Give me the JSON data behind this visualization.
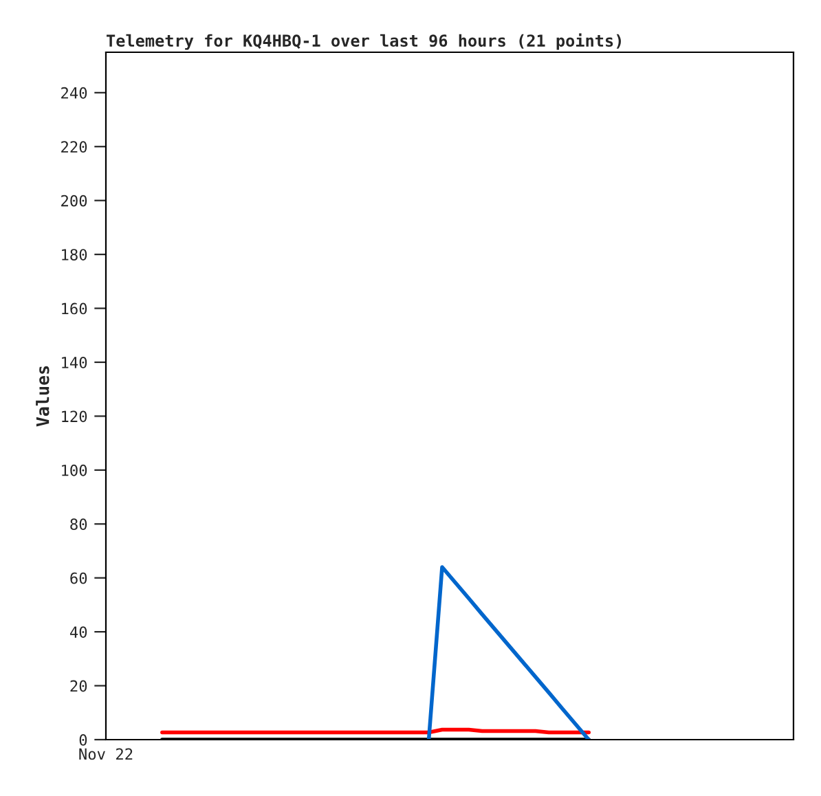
{
  "chart_data": {
    "type": "line",
    "title": "Telemetry for KQ4HBQ-1 over last 96 hours (21 points)",
    "ylabel": "Values",
    "annotations": [
      "Nov 22"
    ],
    "categories": [
      null,
      null,
      null,
      null,
      null,
      null,
      null,
      null,
      null,
      null,
      null,
      null,
      null,
      null,
      null,
      null,
      null,
      null,
      null,
      null,
      null,
      null,
      null,
      null,
      null,
      null,
      null,
      null,
      null,
      null,
      null,
      null,
      null
    ],
    "ylim": [
      0,
      255
    ],
    "yticks": [
      0,
      20,
      40,
      60,
      80,
      100,
      120,
      140,
      160,
      180,
      200,
      220,
      240
    ],
    "grid": false,
    "legend": false,
    "marker": "none",
    "line_style": "solid",
    "series": [
      {
        "color": "#000000",
        "values": [
          0,
          0,
          0,
          0,
          0,
          0,
          0,
          0,
          0,
          0,
          0,
          0,
          0,
          0,
          0,
          0,
          0,
          0,
          0,
          0,
          0,
          0,
          0,
          0,
          0,
          0,
          0,
          0,
          0,
          0,
          0,
          0,
          0
        ]
      },
      {
        "color": "#ff0000",
        "values": [
          2.7,
          2.7,
          2.7,
          2.7,
          2.7,
          2.7,
          2.7,
          2.7,
          2.7,
          2.7,
          2.7,
          2.7,
          2.7,
          2.7,
          2.7,
          2.7,
          2.7,
          2.7,
          2.7,
          2.7,
          2.7,
          3.7,
          3.7,
          3.7,
          3.2,
          3.2,
          3.2,
          3.2,
          3.2,
          2.7,
          2.7,
          2.7,
          2.7
        ]
      },
      {
        "color": "#0066cc",
        "values": [
          null,
          null,
          null,
          null,
          null,
          null,
          null,
          null,
          null,
          null,
          null,
          null,
          null,
          null,
          null,
          null,
          null,
          null,
          null,
          null,
          0,
          64,
          58.2,
          52.4,
          46.5,
          40.7,
          34.9,
          29.1,
          23.3,
          17.5,
          11.6,
          5.8,
          0
        ]
      }
    ]
  }
}
